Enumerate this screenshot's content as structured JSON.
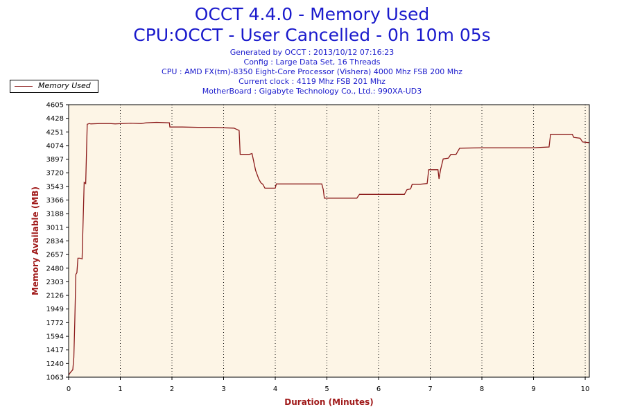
{
  "title_line1": "OCCT 4.4.0 - Memory Used",
  "title_line2": "CPU:OCCT - User Cancelled - 0h 10m 05s",
  "info": {
    "generated": "Generated by OCCT : 2013/10/12 07:16:23",
    "config": "Config : Large Data Set, 16 Threads",
    "cpu": "CPU : AMD FX(tm)-8350 Eight-Core Processor (Vishera) 4000 Mhz FSB 200 Mhz",
    "clock": "Current clock : 4119 Mhz FSB 201 Mhz",
    "motherboard": "MotherBoard : Gigabyte Technology Co., Ltd.: 990XA-UD3"
  },
  "legend": {
    "label": "Memory Used"
  },
  "colors": {
    "line": "#8b1a1a",
    "plot_background": "#fdf5e6",
    "title": "#1a1acc",
    "axis_title": "#a01a1a"
  },
  "chart_data": {
    "type": "line",
    "xlabel": "Duration (Minutes)",
    "ylabel": "Memory Available (MB)",
    "xlim": [
      0,
      10.08
    ],
    "ylim": [
      1063,
      4605
    ],
    "x_ticks": [
      "0",
      "1",
      "2",
      "3",
      "4",
      "5",
      "6",
      "7",
      "8",
      "9",
      "10"
    ],
    "y_ticks": [
      "1063",
      "1240",
      "1417",
      "1594",
      "1772",
      "1949",
      "2126",
      "2303",
      "2480",
      "2657",
      "2834",
      "3011",
      "3188",
      "3366",
      "3543",
      "3720",
      "3897",
      "4074",
      "4251",
      "4428",
      "4605"
    ],
    "grid": true,
    "legend_position": "top-left",
    "series": [
      {
        "name": "Memory Used",
        "x": [
          0,
          0.03,
          0.08,
          0.1,
          0.12,
          0.14,
          0.16,
          0.18,
          0.22,
          0.26,
          0.3,
          0.33,
          0.36,
          0.4,
          0.43,
          0.6,
          0.8,
          0.9,
          1.2,
          1.4,
          1.5,
          1.7,
          1.95,
          1.96,
          2.2,
          2.5,
          2.8,
          3.0,
          3.2,
          3.3,
          3.32,
          3.45,
          3.5,
          3.55,
          3.62,
          3.68,
          3.72,
          3.76,
          3.8,
          3.85,
          4.0,
          4.02,
          4.1,
          4.3,
          4.6,
          4.85,
          4.9,
          4.93,
          4.95,
          5.1,
          5.4,
          5.58,
          5.63,
          5.8,
          6.1,
          6.5,
          6.55,
          6.62,
          6.65,
          6.8,
          6.94,
          6.97,
          7.05,
          7.15,
          7.17,
          7.2,
          7.25,
          7.35,
          7.4,
          7.5,
          7.57,
          7.6,
          8.0,
          8.5,
          9.0,
          9.3,
          9.33,
          9.5,
          9.75,
          9.78,
          9.9,
          9.95,
          10.08
        ],
        "y": [
          1090,
          1120,
          1160,
          1320,
          1800,
          2400,
          2420,
          2610,
          2610,
          2600,
          3595,
          3580,
          4350,
          4360,
          4355,
          4360,
          4360,
          4355,
          4365,
          4360,
          4370,
          4375,
          4370,
          4315,
          4315,
          4310,
          4310,
          4305,
          4300,
          4270,
          3960,
          3960,
          3960,
          3970,
          3750,
          3640,
          3590,
          3570,
          3520,
          3520,
          3520,
          3575,
          3575,
          3575,
          3575,
          3575,
          3575,
          3500,
          3390,
          3390,
          3390,
          3390,
          3440,
          3440,
          3440,
          3440,
          3500,
          3510,
          3570,
          3570,
          3580,
          3760,
          3760,
          3760,
          3640,
          3760,
          3900,
          3910,
          3960,
          3960,
          4040,
          4040,
          4045,
          4045,
          4045,
          4055,
          4220,
          4220,
          4220,
          4180,
          4170,
          4120,
          4110
        ]
      }
    ]
  }
}
